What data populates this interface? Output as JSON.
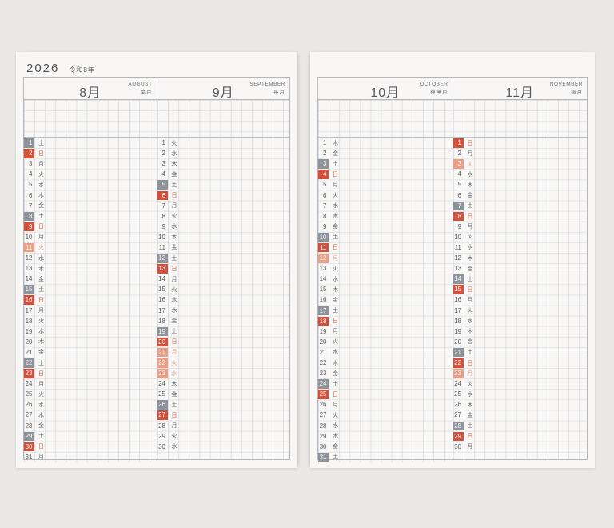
{
  "year": {
    "label": "2026",
    "era": "令和8年"
  },
  "colors": {
    "saturday_square": "#8d929b",
    "sunday_square": "#d5503a",
    "holiday_square": "#eb9e85",
    "sunday_text": "#cf5a43",
    "holiday_text": "#e7a58d",
    "page_background": "#f8f7f5",
    "desk_background": "#e9e8e6"
  },
  "pages": [
    {
      "side": "left",
      "months": [
        {
          "title": "8月",
          "en": "AUGUST",
          "wafu": "葉月",
          "days": [
            {
              "d": "1",
              "w": "土",
              "t": "sat"
            },
            {
              "d": "2",
              "w": "日",
              "t": "sun"
            },
            {
              "d": "3",
              "w": "月",
              "t": ""
            },
            {
              "d": "4",
              "w": "火",
              "t": ""
            },
            {
              "d": "5",
              "w": "水",
              "t": ""
            },
            {
              "d": "6",
              "w": "木",
              "t": ""
            },
            {
              "d": "7",
              "w": "金",
              "t": ""
            },
            {
              "d": "8",
              "w": "土",
              "t": "sat"
            },
            {
              "d": "9",
              "w": "日",
              "t": "sun"
            },
            {
              "d": "10",
              "w": "月",
              "t": ""
            },
            {
              "d": "11",
              "w": "火",
              "t": "hol"
            },
            {
              "d": "12",
              "w": "水",
              "t": ""
            },
            {
              "d": "13",
              "w": "木",
              "t": ""
            },
            {
              "d": "14",
              "w": "金",
              "t": ""
            },
            {
              "d": "15",
              "w": "土",
              "t": "sat"
            },
            {
              "d": "16",
              "w": "日",
              "t": "sun"
            },
            {
              "d": "17",
              "w": "月",
              "t": ""
            },
            {
              "d": "18",
              "w": "火",
              "t": ""
            },
            {
              "d": "19",
              "w": "水",
              "t": ""
            },
            {
              "d": "20",
              "w": "木",
              "t": ""
            },
            {
              "d": "21",
              "w": "金",
              "t": ""
            },
            {
              "d": "22",
              "w": "土",
              "t": "sat"
            },
            {
              "d": "23",
              "w": "日",
              "t": "sun"
            },
            {
              "d": "24",
              "w": "月",
              "t": ""
            },
            {
              "d": "25",
              "w": "火",
              "t": ""
            },
            {
              "d": "26",
              "w": "水",
              "t": ""
            },
            {
              "d": "27",
              "w": "木",
              "t": ""
            },
            {
              "d": "28",
              "w": "金",
              "t": ""
            },
            {
              "d": "29",
              "w": "土",
              "t": "sat"
            },
            {
              "d": "30",
              "w": "日",
              "t": "sun"
            },
            {
              "d": "31",
              "w": "月",
              "t": ""
            }
          ]
        },
        {
          "title": "9月",
          "en": "SEPTEMBER",
          "wafu": "長月",
          "days": [
            {
              "d": "1",
              "w": "火",
              "t": ""
            },
            {
              "d": "2",
              "w": "水",
              "t": ""
            },
            {
              "d": "3",
              "w": "木",
              "t": ""
            },
            {
              "d": "4",
              "w": "金",
              "t": ""
            },
            {
              "d": "5",
              "w": "土",
              "t": "sat"
            },
            {
              "d": "6",
              "w": "日",
              "t": "sun"
            },
            {
              "d": "7",
              "w": "月",
              "t": ""
            },
            {
              "d": "8",
              "w": "火",
              "t": ""
            },
            {
              "d": "9",
              "w": "水",
              "t": ""
            },
            {
              "d": "10",
              "w": "木",
              "t": ""
            },
            {
              "d": "11",
              "w": "金",
              "t": ""
            },
            {
              "d": "12",
              "w": "土",
              "t": "sat"
            },
            {
              "d": "13",
              "w": "日",
              "t": "sun"
            },
            {
              "d": "14",
              "w": "月",
              "t": ""
            },
            {
              "d": "15",
              "w": "火",
              "t": ""
            },
            {
              "d": "16",
              "w": "水",
              "t": ""
            },
            {
              "d": "17",
              "w": "木",
              "t": ""
            },
            {
              "d": "18",
              "w": "金",
              "t": ""
            },
            {
              "d": "19",
              "w": "土",
              "t": "sat"
            },
            {
              "d": "20",
              "w": "日",
              "t": "sun"
            },
            {
              "d": "21",
              "w": "月",
              "t": "hol"
            },
            {
              "d": "22",
              "w": "火",
              "t": "hol"
            },
            {
              "d": "23",
              "w": "水",
              "t": "hol"
            },
            {
              "d": "24",
              "w": "木",
              "t": ""
            },
            {
              "d": "25",
              "w": "金",
              "t": ""
            },
            {
              "d": "26",
              "w": "土",
              "t": "sat"
            },
            {
              "d": "27",
              "w": "日",
              "t": "sun"
            },
            {
              "d": "28",
              "w": "月",
              "t": ""
            },
            {
              "d": "29",
              "w": "火",
              "t": ""
            },
            {
              "d": "30",
              "w": "水",
              "t": ""
            }
          ]
        }
      ]
    },
    {
      "side": "right",
      "months": [
        {
          "title": "10月",
          "en": "OCTOBER",
          "wafu": "神無月",
          "days": [
            {
              "d": "1",
              "w": "木",
              "t": ""
            },
            {
              "d": "2",
              "w": "金",
              "t": ""
            },
            {
              "d": "3",
              "w": "土",
              "t": "sat"
            },
            {
              "d": "4",
              "w": "日",
              "t": "sun"
            },
            {
              "d": "5",
              "w": "月",
              "t": ""
            },
            {
              "d": "6",
              "w": "火",
              "t": ""
            },
            {
              "d": "7",
              "w": "水",
              "t": ""
            },
            {
              "d": "8",
              "w": "木",
              "t": ""
            },
            {
              "d": "9",
              "w": "金",
              "t": ""
            },
            {
              "d": "10",
              "w": "土",
              "t": "sat"
            },
            {
              "d": "11",
              "w": "日",
              "t": "sun"
            },
            {
              "d": "12",
              "w": "月",
              "t": "hol"
            },
            {
              "d": "13",
              "w": "火",
              "t": ""
            },
            {
              "d": "14",
              "w": "水",
              "t": ""
            },
            {
              "d": "15",
              "w": "木",
              "t": ""
            },
            {
              "d": "16",
              "w": "金",
              "t": ""
            },
            {
              "d": "17",
              "w": "土",
              "t": "sat"
            },
            {
              "d": "18",
              "w": "日",
              "t": "sun"
            },
            {
              "d": "19",
              "w": "月",
              "t": ""
            },
            {
              "d": "20",
              "w": "火",
              "t": ""
            },
            {
              "d": "21",
              "w": "水",
              "t": ""
            },
            {
              "d": "22",
              "w": "木",
              "t": ""
            },
            {
              "d": "23",
              "w": "金",
              "t": ""
            },
            {
              "d": "24",
              "w": "土",
              "t": "sat"
            },
            {
              "d": "25",
              "w": "日",
              "t": "sun"
            },
            {
              "d": "26",
              "w": "月",
              "t": ""
            },
            {
              "d": "27",
              "w": "火",
              "t": ""
            },
            {
              "d": "28",
              "w": "水",
              "t": ""
            },
            {
              "d": "29",
              "w": "木",
              "t": ""
            },
            {
              "d": "30",
              "w": "金",
              "t": ""
            },
            {
              "d": "31",
              "w": "土",
              "t": "sat"
            }
          ]
        },
        {
          "title": "11月",
          "en": "NOVEMBER",
          "wafu": "霜月",
          "days": [
            {
              "d": "1",
              "w": "日",
              "t": "sun"
            },
            {
              "d": "2",
              "w": "月",
              "t": ""
            },
            {
              "d": "3",
              "w": "火",
              "t": "hol"
            },
            {
              "d": "4",
              "w": "水",
              "t": ""
            },
            {
              "d": "5",
              "w": "木",
              "t": ""
            },
            {
              "d": "6",
              "w": "金",
              "t": ""
            },
            {
              "d": "7",
              "w": "土",
              "t": "sat"
            },
            {
              "d": "8",
              "w": "日",
              "t": "sun"
            },
            {
              "d": "9",
              "w": "月",
              "t": ""
            },
            {
              "d": "10",
              "w": "火",
              "t": ""
            },
            {
              "d": "11",
              "w": "水",
              "t": ""
            },
            {
              "d": "12",
              "w": "木",
              "t": ""
            },
            {
              "d": "13",
              "w": "金",
              "t": ""
            },
            {
              "d": "14",
              "w": "土",
              "t": "sat"
            },
            {
              "d": "15",
              "w": "日",
              "t": "sun"
            },
            {
              "d": "16",
              "w": "月",
              "t": ""
            },
            {
              "d": "17",
              "w": "火",
              "t": ""
            },
            {
              "d": "18",
              "w": "水",
              "t": ""
            },
            {
              "d": "19",
              "w": "木",
              "t": ""
            },
            {
              "d": "20",
              "w": "金",
              "t": ""
            },
            {
              "d": "21",
              "w": "土",
              "t": "sat"
            },
            {
              "d": "22",
              "w": "日",
              "t": "sun"
            },
            {
              "d": "23",
              "w": "月",
              "t": "hol"
            },
            {
              "d": "24",
              "w": "火",
              "t": ""
            },
            {
              "d": "25",
              "w": "水",
              "t": ""
            },
            {
              "d": "26",
              "w": "木",
              "t": ""
            },
            {
              "d": "27",
              "w": "金",
              "t": ""
            },
            {
              "d": "28",
              "w": "土",
              "t": "sat"
            },
            {
              "d": "29",
              "w": "日",
              "t": "sun"
            },
            {
              "d": "30",
              "w": "月",
              "t": ""
            }
          ]
        }
      ]
    }
  ]
}
